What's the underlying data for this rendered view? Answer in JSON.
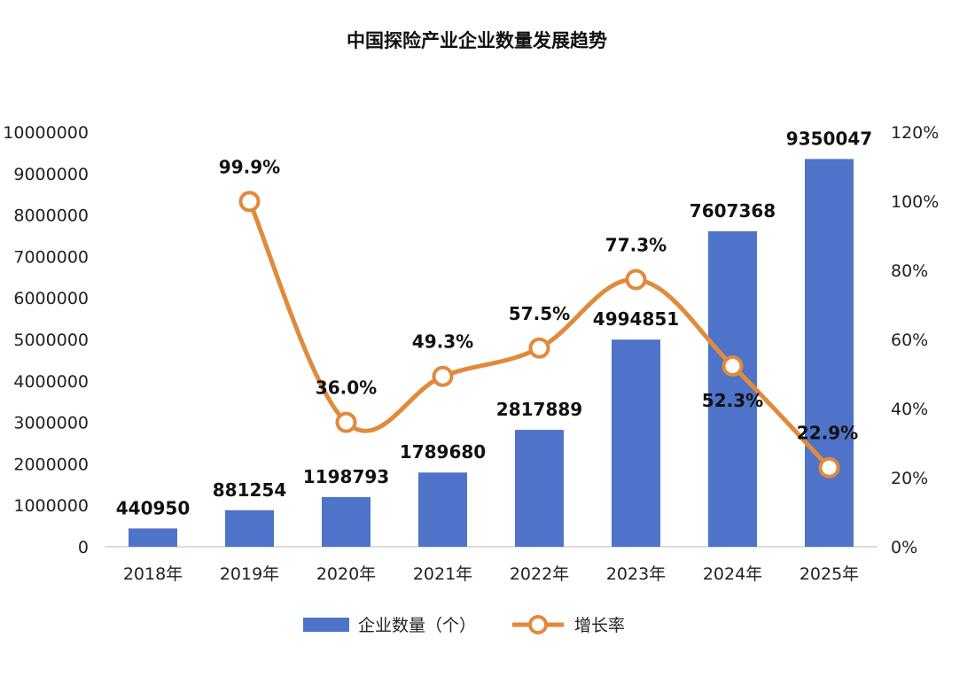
{
  "chart_data": {
    "type": "bar",
    "title": "中国探险产业企业数量发展趋势",
    "categories": [
      "2018年",
      "2019年",
      "2020年",
      "2021年",
      "2022年",
      "2023年",
      "2024年",
      "2025年"
    ],
    "series": [
      {
        "name": "企业数量（个）",
        "type": "bar",
        "axis": "left",
        "color": "#4f73c8",
        "values": [
          440950,
          881254,
          1198793,
          1789680,
          2817889,
          4994851,
          7607368,
          9350047
        ],
        "labels": [
          "440950",
          "881254",
          "1198793",
          "1789680",
          "2817889",
          "4994851",
          "7607368",
          "9350047"
        ]
      },
      {
        "name": "增长率",
        "type": "line",
        "axis": "right",
        "color": "#e08a3c",
        "values": [
          null,
          99.9,
          36.0,
          49.3,
          57.5,
          77.3,
          52.3,
          22.9
        ],
        "labels": [
          "",
          "99.9%",
          "36.0%",
          "49.3%",
          "57.5%",
          "77.3%",
          "52.3%",
          "22.9%"
        ]
      }
    ],
    "y_left": {
      "ylim": [
        0,
        10000000
      ],
      "ticks": [
        0,
        1000000,
        2000000,
        3000000,
        4000000,
        5000000,
        6000000,
        7000000,
        8000000,
        9000000,
        10000000
      ],
      "tick_labels": [
        "0",
        "1000000",
        "2000000",
        "3000000",
        "4000000",
        "5000000",
        "6000000",
        "7000000",
        "8000000",
        "9000000",
        "10000000"
      ]
    },
    "y_right": {
      "ylim": [
        0,
        120
      ],
      "ticks": [
        0,
        20,
        40,
        60,
        80,
        100,
        120
      ],
      "tick_labels": [
        "0%",
        "20%",
        "40%",
        "60%",
        "80%",
        "100%",
        "120%"
      ]
    },
    "grid": false,
    "legend": {
      "position": "bottom"
    }
  }
}
